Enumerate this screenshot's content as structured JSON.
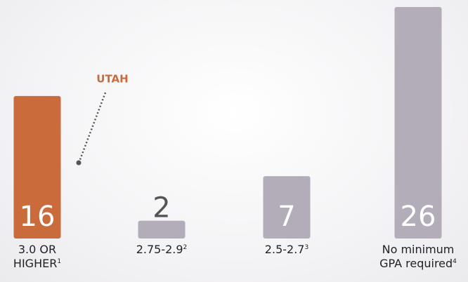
{
  "chart_data": {
    "type": "bar",
    "categories": [
      "3.0 OR HIGHER",
      "2.75-2.9",
      "2.5-2.7",
      "No minimum GPA required"
    ],
    "category_footnotes": [
      "1",
      "2",
      "3",
      "4"
    ],
    "values": [
      16,
      2,
      7,
      26
    ],
    "colors": [
      "#c96b3b",
      "#b3adba",
      "#b3adba",
      "#b3adba"
    ],
    "annotation": "UTAH",
    "annotation_color": "#c96b3b"
  }
}
